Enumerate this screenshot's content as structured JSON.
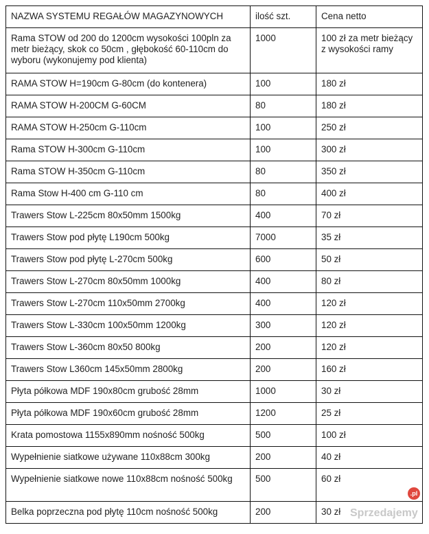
{
  "table": {
    "headers": [
      "NAZWA SYSTEMU REGAŁÓW MAGAZYNOWYCH",
      "ilość szt.",
      "Cena netto"
    ],
    "rows": [
      [
        "Rama STOW od 200 do 1200cm wysokości 100pln za metr bieżący, skok co 50cm , głębokość 60-110cm do wyboru (wykonujemy pod klienta)",
        "1000",
        "100 zł za metr bieżący z wysokości ramy"
      ],
      [
        "RAMA STOW H=190cm G-80cm (do kontenera)",
        "100",
        "180 zł"
      ],
      [
        "RAMA STOW H-200CM G-60CM",
        "80",
        "180 zł"
      ],
      [
        "RAMA STOW H-250cm  G-110cm",
        "100",
        "250 zł"
      ],
      [
        "Rama STOW H-300cm G-110cm",
        "100",
        "300 zł"
      ],
      [
        "Rama STOW H-350cm G-110cm",
        "80",
        "350 zł"
      ],
      [
        "Rama Stow H-400 cm G-110 cm",
        "80",
        "400 zł"
      ],
      [
        "Trawers Stow L-225cm 80x50mm 1500kg",
        "400",
        "70 zł"
      ],
      [
        "Trawers Stow pod płytę L190cm 500kg",
        "7000",
        "35 zł"
      ],
      [
        "Trawers Stow pod płytę L-270cm 500kg",
        "600",
        "50 zł"
      ],
      [
        "Trawers Stow L-270cm 80x50mm 1000kg",
        "400",
        "80 zł"
      ],
      [
        "Trawers Stow L-270cm 110x50mm 2700kg",
        "400",
        "120 zł"
      ],
      [
        "Trawers Stow L-330cm 100x50mm 1200kg",
        "300",
        "120 zł"
      ],
      [
        "Trawers Stow L-360cm 80x50 800kg",
        "200",
        "120 zł"
      ],
      [
        "Trawers Stow L360cm 145x50mm 2800kg",
        "200",
        "160 zł"
      ],
      [
        "Płyta półkowa MDF  190x80cm grubość 28mm",
        "1000",
        "30 zł"
      ],
      [
        "Płyta półkowa MDF 190x60cm grubość 28mm",
        "1200",
        "25 zł"
      ],
      [
        "Krata pomostowa 1155x890mm nośność 500kg",
        "500",
        "100 zł"
      ],
      [
        "Wypełnienie siatkowe używane 110x88cm 300kg",
        "200",
        "40 zł"
      ],
      [
        "Wypełnienie siatkowe nowe 110x88cm nośność 500kg",
        "500",
        "60 zł"
      ],
      [
        "Belka poprzeczna pod płytę 110cm nośność 500kg",
        "200",
        "30 zł"
      ]
    ]
  },
  "watermark": {
    "text": "Sprzedajemy",
    "badge": ".pl",
    "badge_color": "#e0483e"
  }
}
